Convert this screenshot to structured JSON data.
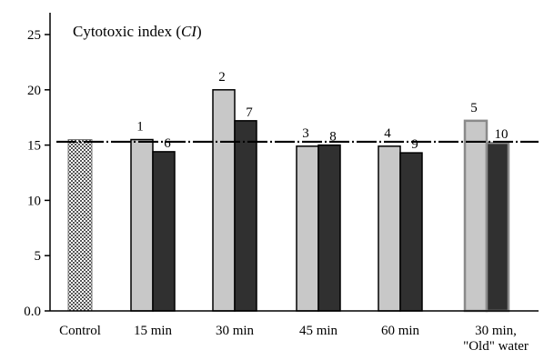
{
  "chart_data": {
    "type": "bar",
    "title": "Cytotoxic index (",
    "title_italic": "CI",
    "title_suffix": ")",
    "ylim": [
      0,
      25
    ],
    "yticks": [
      "0.0",
      "5",
      "10",
      "15",
      "20",
      "25"
    ],
    "ytick_values": [
      0,
      5,
      10,
      15,
      20,
      25
    ],
    "categories": [
      {
        "lines": [
          "Control"
        ]
      },
      {
        "lines": [
          "15 min"
        ]
      },
      {
        "lines": [
          "30 min"
        ]
      },
      {
        "lines": [
          "45 min"
        ]
      },
      {
        "lines": [
          "60 min"
        ]
      },
      {
        "lines": [
          "30 min,",
          "\"Old\" water"
        ]
      }
    ],
    "control_value": 15.5,
    "reference_line_value": 15.3,
    "bars": [
      {
        "label": "1",
        "value": 15.5,
        "category": 1,
        "slot": 0
      },
      {
        "label": "6",
        "value": 14.4,
        "category": 1,
        "slot": 1
      },
      {
        "label": "2",
        "value": 20.0,
        "category": 2,
        "slot": 0
      },
      {
        "label": "7",
        "value": 17.2,
        "category": 2,
        "slot": 1
      },
      {
        "label": "3",
        "value": 14.9,
        "category": 3,
        "slot": 0
      },
      {
        "label": "8",
        "value": 15.0,
        "category": 3,
        "slot": 1
      },
      {
        "label": "4",
        "value": 14.9,
        "category": 4,
        "slot": 0
      },
      {
        "label": "9",
        "value": 14.3,
        "category": 4,
        "slot": 1
      },
      {
        "label": "5",
        "value": 17.2,
        "category": 5,
        "slot": 0
      },
      {
        "label": "10",
        "value": 15.2,
        "category": 5,
        "slot": 1
      }
    ],
    "colors": {
      "light_bar": "#c8c8c8",
      "dark_bar": "#303030",
      "outline": "#000000",
      "old_water_outline": "#8a8a8a"
    }
  }
}
